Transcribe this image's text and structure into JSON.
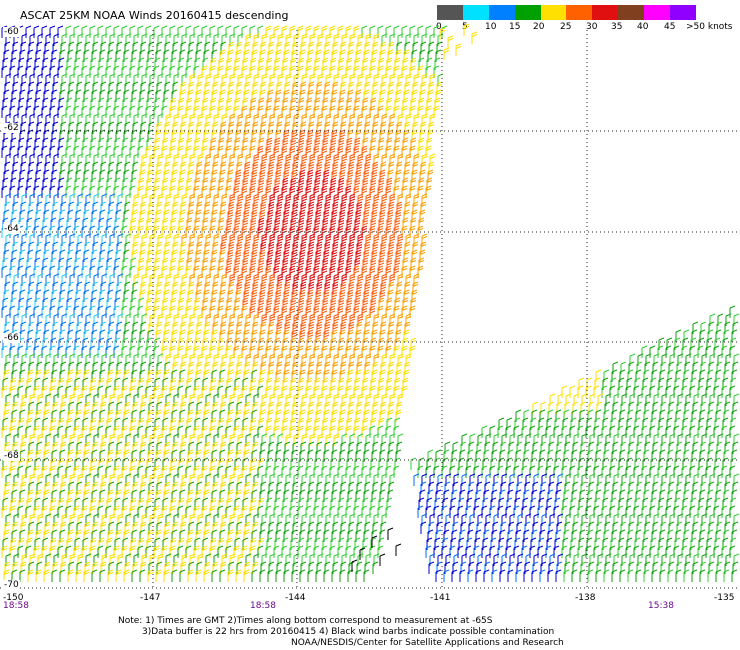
{
  "title": "ASCAT 25KM NOAA Winds 20160415 descending",
  "legend": {
    "colors": [
      "#555555",
      "#aaaaaa",
      "#00e0ff",
      "#0080ff",
      "#0000d0",
      "#00a000",
      "#20d020",
      "#ffe000",
      "#ffb000",
      "#ff6000",
      "#e01010",
      "#c00040",
      "#804020",
      "#a06040",
      "#ff00ff",
      "#9000ff",
      "#6000a0"
    ],
    "labels": [
      "0",
      "5",
      "10",
      "15",
      "20",
      "25",
      "30",
      "35",
      "40",
      "45"
    ],
    "unit": ">50 knots"
  },
  "axes": {
    "lat_labels": [
      "-60",
      "-62",
      "-64",
      "-66",
      "-68",
      "-70"
    ],
    "lon_labels": [
      "-150",
      "-147",
      "-144",
      "-141",
      "-138",
      "-135"
    ],
    "time_labels": [
      "18:58",
      "18:58",
      "15:38"
    ]
  },
  "notes": [
    "Note: 1) Times are GMT 2)Times along bottom correspond to measurement at -65S",
    "3)Data buffer is 22 hrs from 20160415 4) Black wind barbs indicate possible contamination",
    "NOAA/NESDIS/Center for Satellite Applications and Research"
  ]
}
